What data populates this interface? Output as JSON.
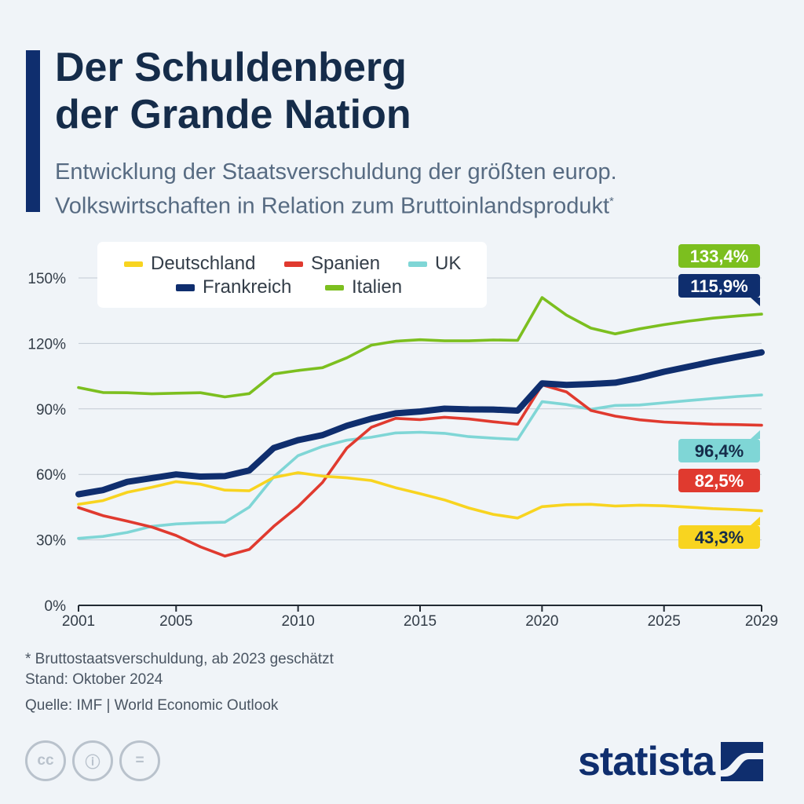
{
  "header": {
    "title_line1": "Der Schuldenberg",
    "title_line2": "der Grande Nation",
    "subtitle_line1": "Entwicklung der Staatsverschuldung der größten europ.",
    "subtitle_line2": "Volkswirtschaften in Relation zum Bruttoinlandsprodukt",
    "subtitle_mark": "*"
  },
  "legend": {
    "deutschland": "Deutschland",
    "spanien": "Spanien",
    "uk": "UK",
    "frankreich": "Frankreich",
    "italien": "Italien"
  },
  "chart_data": {
    "type": "line",
    "title": "Der Schuldenberg der Grande Nation",
    "subtitle": "Entwicklung der Staatsverschuldung der größten europ. Volkswirtschaften in Relation zum Bruttoinlandsprodukt*",
    "xlabel": "",
    "ylabel": "",
    "x": [
      2001,
      2002,
      2003,
      2004,
      2005,
      2006,
      2007,
      2008,
      2009,
      2010,
      2011,
      2012,
      2013,
      2014,
      2015,
      2016,
      2017,
      2018,
      2019,
      2020,
      2021,
      2022,
      2023,
      2024,
      2025,
      2026,
      2027,
      2028,
      2029
    ],
    "xticks": [
      "2001",
      "2005",
      "2010",
      "2015",
      "2020",
      "2025",
      "2029"
    ],
    "xlim": [
      2001,
      2029
    ],
    "ylim": [
      0,
      150
    ],
    "yticks": [
      0,
      30,
      60,
      90,
      120,
      150
    ],
    "ytick_labels": [
      "0%",
      "30%",
      "60%",
      "90%",
      "120%",
      "150%"
    ],
    "grid": true,
    "legend_position": "top-left",
    "series": [
      {
        "name": "Italien",
        "color": "#7cbf1f",
        "thick": false,
        "values": [
          99.8,
          97.5,
          97.4,
          96.9,
          97.2,
          97.4,
          95.5,
          97.0,
          106.0,
          107.6,
          108.9,
          113.4,
          119.2,
          121.0,
          121.7,
          121.2,
          121.2,
          121.6,
          121.4,
          141.0,
          133.0,
          127.0,
          124.4,
          126.7,
          128.6,
          130.2,
          131.6,
          132.6,
          133.4
        ],
        "end_label": "133,4%"
      },
      {
        "name": "Frankreich",
        "color": "#0f2e6e",
        "thick": true,
        "values": [
          50.9,
          52.8,
          56.6,
          58.3,
          60.0,
          59.0,
          59.2,
          61.8,
          72.1,
          75.7,
          78.0,
          82.3,
          85.5,
          88.0,
          88.8,
          90.1,
          89.8,
          89.7,
          89.2,
          101.7,
          101.0,
          101.4,
          102.0,
          104.2,
          107.0,
          109.3,
          111.7,
          113.8,
          115.9
        ],
        "end_label": "115,9%"
      },
      {
        "name": "UK",
        "color": "#7fd6d6",
        "thick": false,
        "values": [
          30.7,
          31.6,
          33.4,
          36.2,
          37.3,
          37.8,
          38.1,
          45.0,
          58.8,
          68.6,
          72.8,
          75.7,
          77.0,
          79.0,
          79.3,
          78.8,
          77.3,
          76.6,
          76.0,
          93.3,
          92.0,
          89.8,
          91.6,
          91.8,
          92.8,
          93.8,
          94.8,
          95.7,
          96.4
        ],
        "end_label": "96,4%"
      },
      {
        "name": "Spanien",
        "color": "#e03a2f",
        "thick": false,
        "values": [
          44.8,
          41.1,
          38.6,
          35.9,
          32.0,
          26.8,
          22.6,
          25.6,
          36.2,
          45.3,
          56.3,
          72.1,
          81.6,
          85.7,
          85.1,
          86.2,
          85.4,
          84.1,
          83.0,
          101.0,
          97.8,
          89.3,
          86.7,
          85.0,
          84.0,
          83.5,
          83.0,
          82.8,
          82.5
        ],
        "end_label": "82,5%"
      },
      {
        "name": "Deutschland",
        "color": "#f8d420",
        "thick": false,
        "values": [
          46.3,
          48.0,
          51.8,
          54.1,
          56.7,
          55.5,
          52.8,
          52.5,
          58.6,
          60.8,
          59.2,
          58.4,
          57.2,
          53.9,
          51.2,
          48.3,
          44.6,
          41.7,
          40.0,
          45.2,
          46.1,
          46.3,
          45.5,
          45.9,
          45.6,
          45.0,
          44.3,
          43.9,
          43.3
        ],
        "end_label": "43,3%"
      }
    ]
  },
  "footer": {
    "note": "* Bruttostaatsverschuldung, ab 2023 geschätzt",
    "stand": "Stand: Oktober 2024",
    "source": "Quelle: IMF | World Economic Outlook",
    "cc_labels": [
      "cc",
      "ⓘ",
      "="
    ],
    "brand": "statista"
  }
}
